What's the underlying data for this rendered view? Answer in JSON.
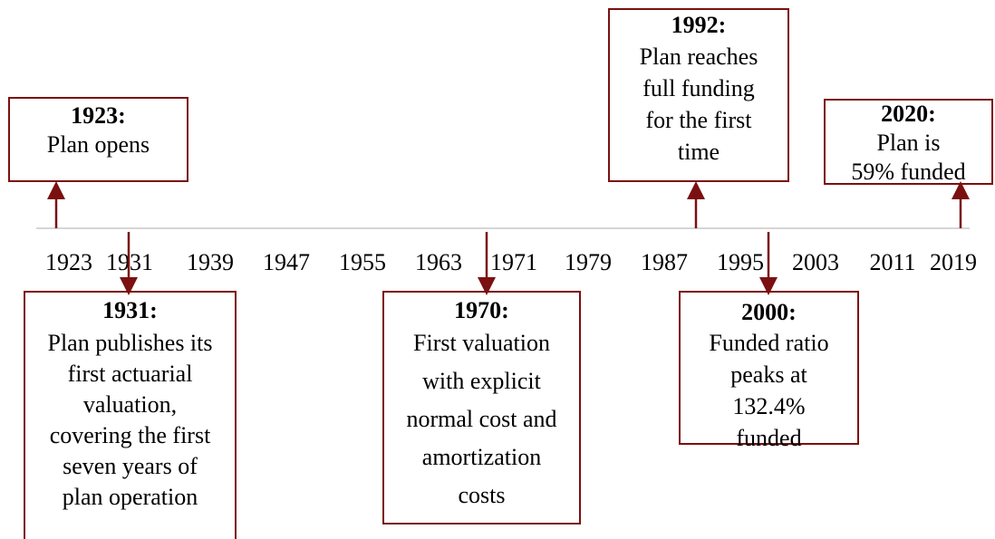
{
  "axis": {
    "ticks": [
      "1923",
      "1931",
      "1939",
      "1947",
      "1955",
      "1963",
      "1971",
      "1979",
      "1987",
      "1995",
      "2003",
      "2011",
      "2019"
    ]
  },
  "events": [
    {
      "title": "1923:",
      "lines": [
        "Plan opens"
      ]
    },
    {
      "title": "1931:",
      "lines": [
        "Plan publishes its",
        "first actuarial",
        "valuation,",
        "covering the first",
        "seven years of",
        "plan operation"
      ]
    },
    {
      "title": "1970:",
      "lines": [
        "First valuation",
        "with explicit",
        "normal cost and",
        "amortization",
        "costs"
      ]
    },
    {
      "title": "1992:",
      "lines": [
        "Plan reaches",
        "full funding",
        "for the first",
        "time"
      ]
    },
    {
      "title": "2000:",
      "lines": [
        "Funded ratio",
        "peaks at",
        "132.4%",
        "funded"
      ]
    },
    {
      "title": "2020:",
      "lines": [
        "Plan is",
        "59% funded"
      ]
    }
  ]
}
